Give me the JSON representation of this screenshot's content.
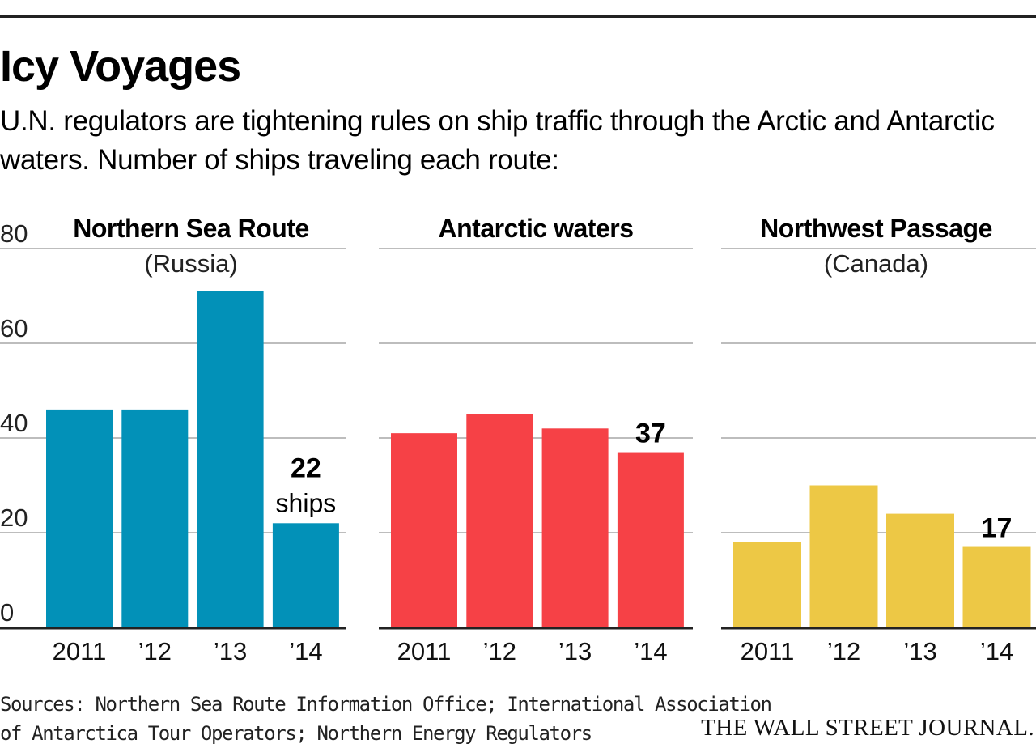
{
  "header": {
    "title": "Icy Voyages",
    "subtitle": "U.N. regulators are tightening rules on ship traffic through the Arctic and Antarctic waters. Number of ships traveling each route:"
  },
  "chart_data": [
    {
      "type": "bar",
      "title": "Northern Sea Route",
      "subtitle": "(Russia)",
      "categories": [
        "2011",
        "’12",
        "’13",
        "’14"
      ],
      "values": [
        46,
        46,
        71,
        22
      ],
      "ylim": [
        0,
        80
      ],
      "yticks": [
        "0",
        "20",
        "40",
        "60",
        "80"
      ],
      "annotation": {
        "index": 3,
        "value": "22",
        "unit": "ships"
      },
      "color": "#0291b8",
      "grid": true
    },
    {
      "type": "bar",
      "title": "Antarctic waters",
      "categories": [
        "2011",
        "’12",
        "’13",
        "’14"
      ],
      "values": [
        41,
        45,
        42,
        37
      ],
      "ylim": [
        0,
        80
      ],
      "annotation": {
        "index": 3,
        "value": "37"
      },
      "color": "#f64146",
      "grid": true
    },
    {
      "type": "bar",
      "title": "Northwest Passage",
      "subtitle": "(Canada)",
      "categories": [
        "2011",
        "’12",
        "’13",
        "’14"
      ],
      "values": [
        18,
        30,
        24,
        17
      ],
      "ylim": [
        0,
        80
      ],
      "annotation": {
        "index": 3,
        "value": "17"
      },
      "color": "#edc845",
      "grid": true
    }
  ],
  "footer": {
    "sources_line1": "Sources: Northern Sea Route Information Office; International Association",
    "sources_line2": "of Antarctica Tour Operators; Northern Energy Regulators",
    "credit": "THE WALL STREET JOURNAL."
  }
}
